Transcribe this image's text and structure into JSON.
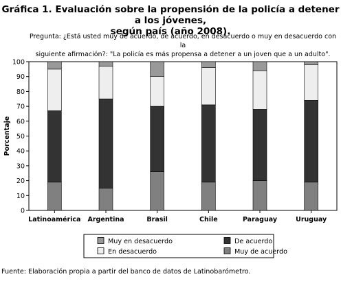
{
  "title_line1": "Gráfica 1. Evaluación sobre la propensión de la policía a detener a los jóvenes,",
  "title_line2": "según país (año 2008).",
  "question_line1": "Pregunta: ¿Está usted muy de acuerdo, de acuerdo, en desacuerdo o muy en desacuerdo con la",
  "question_line2": "siguiente afirmación?: \"La policía es más propensa a detener a un joven que a un adulto\".",
  "source": "Fuente: Elaboración propia a partir del banco de datos de Latinobarómetro.",
  "chart_data": {
    "type": "bar",
    "stacked": true,
    "categories": [
      "Latinoamérica",
      "Argentina",
      "Brasil",
      "Chile",
      "Paraguay",
      "Uruguay"
    ],
    "ylabel": "Porcentaje",
    "xlabel": "",
    "ylim": [
      0,
      100
    ],
    "yticks": [
      0,
      10,
      20,
      30,
      40,
      50,
      60,
      70,
      80,
      90,
      100
    ],
    "grid": false,
    "legend_placement": "bottom",
    "series": [
      {
        "name": "Muy de acuerdo",
        "color": "#808080",
        "values": [
          19,
          15,
          26,
          19,
          20,
          19
        ]
      },
      {
        "name": "De acuerdo",
        "color": "#333333",
        "values": [
          48,
          60,
          44,
          52,
          48,
          55
        ]
      },
      {
        "name": "En desacuerdo",
        "color": "#eeeeee",
        "values": [
          28,
          22,
          20,
          25,
          26,
          24
        ]
      },
      {
        "name": "Muy en desacuerdo",
        "color": "#999999",
        "values": [
          5,
          3,
          10,
          4,
          6,
          2
        ]
      }
    ],
    "legend_order": [
      "Muy en desacuerdo",
      "De acuerdo",
      "En desacuerdo",
      "Muy de acuerdo"
    ]
  }
}
